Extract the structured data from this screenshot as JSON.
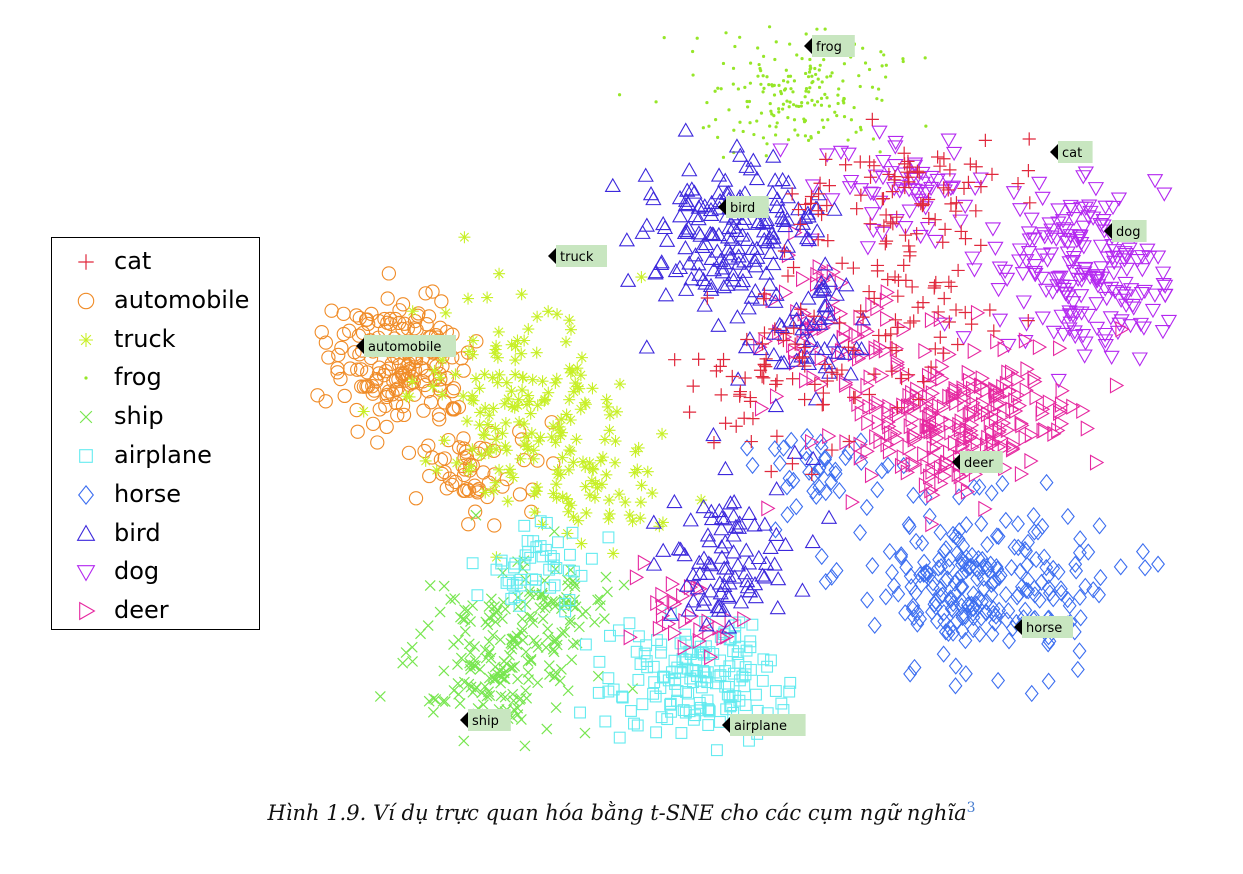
{
  "chart_data": {
    "type": "scatter",
    "title": "",
    "xlabel": "",
    "ylabel": "",
    "legend_position": "left",
    "series": [
      {
        "name": "cat",
        "marker": "plus",
        "color": "#e0283c"
      },
      {
        "name": "automobile",
        "marker": "circle",
        "color": "#f08c28"
      },
      {
        "name": "truck",
        "marker": "asterisk",
        "color": "#c8f028"
      },
      {
        "name": "frog",
        "marker": "dot",
        "color": "#96e628"
      },
      {
        "name": "ship",
        "marker": "x",
        "color": "#78e650"
      },
      {
        "name": "airplane",
        "marker": "square",
        "color": "#64ebf0"
      },
      {
        "name": "horse",
        "marker": "diamond",
        "color": "#3c6ef0"
      },
      {
        "name": "bird",
        "marker": "triangle-up",
        "color": "#3c28dc"
      },
      {
        "name": "dog",
        "marker": "triangle-down",
        "color": "#b428f0"
      },
      {
        "name": "deer",
        "marker": "triangle-right",
        "color": "#e628a0"
      }
    ],
    "cluster_labels": [
      "frog",
      "cat",
      "bird",
      "dog",
      "truck",
      "automobile",
      "deer",
      "horse",
      "ship",
      "airplane"
    ]
  },
  "caption": {
    "text": "Hình 1.9. Ví dụ trực quan hóa bằng t-SNE cho các cụm ngữ nghĩa",
    "footnote": "3"
  }
}
